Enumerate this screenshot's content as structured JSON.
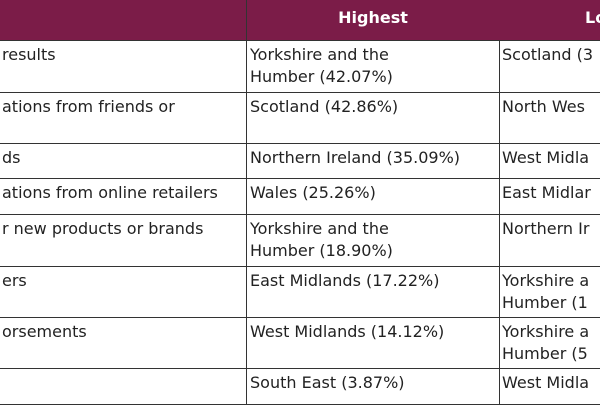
{
  "table": {
    "header": [
      "Highest",
      "Lo"
    ],
    "rows": [
      [
        [
          "results"
        ],
        [
          "Yorkshire and the",
          "Humber (42.07%)"
        ],
        [
          "Scotland (3"
        ]
      ],
      [
        [
          "ations from friends or"
        ],
        [
          "Scotland (42.86%)"
        ],
        [
          "North Wes"
        ]
      ],
      [
        [
          "ds"
        ],
        [
          "Northern Ireland (35.09%)"
        ],
        [
          "West Midla"
        ]
      ],
      [
        [
          "ations from online retailers"
        ],
        [
          "Wales (25.26%)"
        ],
        [
          "East Midlar"
        ]
      ],
      [
        [
          "r new products or brands"
        ],
        [
          "Yorkshire and the",
          "Humber (18.90%)"
        ],
        [
          "Northern Ir"
        ]
      ],
      [
        [
          "ers"
        ],
        [
          "East Midlands (17.22%)"
        ],
        [
          "Yorkshire a",
          "Humber (1"
        ]
      ],
      [
        [
          "orsements"
        ],
        [
          "West Midlands (14.12%)"
        ],
        [
          "Yorkshire a",
          "Humber (5"
        ]
      ],
      [
        [],
        [
          "South East (3.87%)"
        ],
        [
          "West Midla"
        ]
      ]
    ]
  }
}
